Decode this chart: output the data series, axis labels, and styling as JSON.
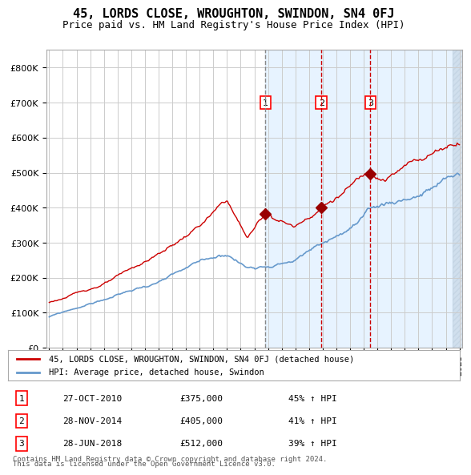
{
  "title": "45, LORDS CLOSE, WROUGHTON, SWINDON, SN4 0FJ",
  "subtitle": "Price paid vs. HM Land Registry's House Price Index (HPI)",
  "legend_line1": "45, LORDS CLOSE, WROUGHTON, SWINDON, SN4 0FJ (detached house)",
  "legend_line2": "HPI: Average price, detached house, Swindon",
  "footer1": "Contains HM Land Registry data © Crown copyright and database right 2024.",
  "footer2": "This data is licensed under the Open Government Licence v3.0.",
  "transactions": [
    {
      "num": 1,
      "date": "27-OCT-2010",
      "price": "£375,000",
      "hpi": "45% ↑ HPI",
      "x_year": 2010.82
    },
    {
      "num": 2,
      "date": "28-NOV-2014",
      "price": "£405,000",
      "hpi": "41% ↑ HPI",
      "x_year": 2014.91
    },
    {
      "num": 3,
      "date": "28-JUN-2018",
      "price": "£512,000",
      "hpi": "39% ↑ HPI",
      "x_year": 2018.49
    }
  ],
  "red_line_color": "#cc0000",
  "blue_line_color": "#6699cc",
  "marker_color": "#990000",
  "vline_color_1": "#888888",
  "vline_color_23": "#cc0000",
  "shading_color": "#ddeeff",
  "hatch_color": "#bbccdd",
  "ylim": [
    0,
    850000
  ],
  "xlim_start": 1995,
  "xlim_end": 2025,
  "background_color": "#ffffff",
  "grid_color": "#cccccc"
}
